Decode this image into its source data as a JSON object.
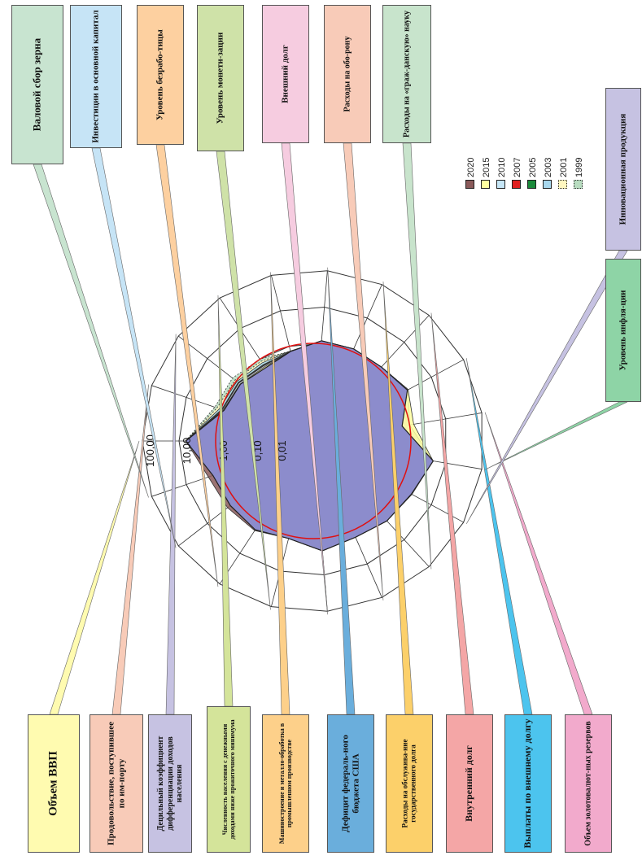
{
  "chart_data": {
    "type": "radar",
    "scale": "log",
    "rings": [
      0.001,
      0.01,
      0.1,
      1,
      10,
      100
    ],
    "ring_labels": [
      "0,01",
      "0,10",
      "1,00",
      "10,00",
      "100,00"
    ],
    "reference_value": 1,
    "legend": [
      "2020",
      "2015",
      "2010",
      "2007",
      "2005",
      "2003",
      "2001",
      "1999"
    ],
    "categories": [
      "Объем ВВП",
      "Продовольствие, поступившее по импорту",
      "Децильный коэффициент дифференциации доходов населения",
      "Численность населения с денежными доходами ниже прожиточного минимума",
      "Машиностроение и металлообработка в промышленном производстве",
      "Дефицит федерального бюджета США",
      "Расходы на обслуживание государственного долга",
      "Внутренний долг",
      "Выплаты по внешнему долгу",
      "Объем золотовалютных резервов",
      "Уровень инфляции",
      "Инновационная продукция",
      "Расходы на «гражданскую» науку",
      "Расходы на оборону",
      "Внешний долг",
      "Уровень монетизации",
      "Уровень безработицы",
      "Инвестиции в основной капитал",
      "Валовой сбор зерна"
    ],
    "series": [
      {
        "name": "1999",
        "color": "#8a5a5a",
        "values": [
          6.5,
          0.8,
          0.7,
          0.5,
          0.7,
          1.2,
          1.2,
          1.2,
          1.8,
          0.6,
          4.5,
          2.5,
          2.0,
          1.6,
          2.2,
          1.2,
          1.8,
          2.0,
          2.3
        ]
      },
      {
        "name": "2001",
        "color": "#ffffa0",
        "values": [
          6.5,
          0.85,
          0.72,
          0.55,
          0.7,
          1.2,
          1.2,
          1.2,
          1.9,
          1.3,
          4.5,
          2.4,
          2.0,
          1.6,
          2.2,
          1.2,
          1.7,
          1.6,
          1.7
        ]
      },
      {
        "name": "2003",
        "color": "#c6e6f6",
        "values": [
          6.5,
          0.9,
          0.8,
          0.6,
          0.7,
          1.2,
          1.2,
          1.2,
          1.9,
          1.0,
          4.5,
          2.4,
          2.0,
          1.6,
          2.2,
          1.2,
          1.7,
          1.6,
          1.7
        ]
      },
      {
        "name": "2005",
        "color": "#e02020",
        "values": [
          6.5,
          0.92,
          0.82,
          0.62,
          0.7,
          1.2,
          1.2,
          1.2,
          1.9,
          0.9,
          4.5,
          2.4,
          2.0,
          1.6,
          2.2,
          1.2,
          1.7,
          1.6,
          1.7
        ]
      },
      {
        "name": "2007",
        "color": "#1a8a3a",
        "values": [
          6.6,
          0.95,
          0.85,
          0.65,
          0.7,
          1.2,
          1.2,
          1.2,
          1.9,
          0.8,
          4.5,
          2.4,
          2.0,
          1.6,
          2.2,
          1.2,
          1.7,
          1.6,
          1.7
        ]
      },
      {
        "name": "2010",
        "color": "#a8d8ee",
        "values": [
          6.6,
          1.1,
          0.95,
          0.75,
          0.72,
          1.2,
          1.2,
          1.2,
          1.9,
          0.75,
          4.5,
          2.4,
          2.0,
          1.6,
          2.2,
          1.2,
          1.7,
          1.6,
          1.7
        ]
      },
      {
        "name": "2015",
        "color": "#fff7c0",
        "values": [
          6.6,
          1.3,
          1.1,
          0.85,
          0.72,
          1.2,
          1.2,
          1.2,
          1.9,
          0.72,
          4.5,
          2.4,
          2.0,
          1.6,
          2.2,
          1.2,
          1.7,
          1.6,
          1.7
        ]
      },
      {
        "name": "2020",
        "color": "#b8dcc0",
        "values": [
          6.6,
          1.5,
          1.35,
          1.0,
          0.72,
          1.2,
          1.2,
          1.2,
          1.9,
          0.7,
          4.5,
          2.4,
          2.0,
          1.6,
          2.2,
          1.2,
          1.7,
          1.6,
          1.7
        ]
      }
    ]
  },
  "callouts": [
    {
      "key": "gdp",
      "label": "Объем ВВП",
      "color": "#fffbb0"
    },
    {
      "key": "food",
      "label": "Продовольствие, поступившее по им-порту",
      "color": "#f8cbb8"
    },
    {
      "key": "decile",
      "label": "Децильный коэффициент дифференциации доходов населения",
      "color": "#c6c2e2"
    },
    {
      "key": "poverty",
      "label": "Численность населения с денежными доходами ниже прожиточного минимума",
      "color": "#d4e49a"
    },
    {
      "key": "machinery",
      "label": "Машиностроение и металло-обработка в промышленном производстве",
      "color": "#fdd08a"
    },
    {
      "key": "deficit",
      "label": "Дефицит федераль-ного бюджета США",
      "color": "#6aaedc"
    },
    {
      "key": "debtservice",
      "label": "Расходы на обслужива-ние государственного долга",
      "color": "#fcd06a"
    },
    {
      "key": "domdebt",
      "label": "Внутренний долг",
      "color": "#f4a6a6"
    },
    {
      "key": "extpay",
      "label": "Выплаты по внешнему долгу",
      "color": "#4cc4ee"
    },
    {
      "key": "reserves",
      "label": "Объем золотовалют-ных резервов",
      "color": "#f2aacc"
    },
    {
      "key": "inflation",
      "label": "Уровень инфля-ции",
      "color": "#8ed4a6"
    },
    {
      "key": "innov",
      "label": "Инновационная продукция",
      "color": "#c6c2e2"
    },
    {
      "key": "science",
      "label": "Расходы на «граж-данскую» науку",
      "color": "#c8e4cc"
    },
    {
      "key": "defense",
      "label": "Расходы на обо-рону",
      "color": "#f8cbb8"
    },
    {
      "key": "extdebt",
      "label": "Внешний долг",
      "color": "#f6cce0"
    },
    {
      "key": "monet",
      "label": "Уровень монети-зации",
      "color": "#cfe2a8"
    },
    {
      "key": "unemp",
      "label": "Уровень безрабо-тицы",
      "color": "#fdd0a0"
    },
    {
      "key": "invest",
      "label": "Инвестиции в основной капитал",
      "color": "#c6e4f6"
    },
    {
      "key": "grain",
      "label": "Валовой сбор зерна",
      "color": "#c8e4d0"
    }
  ]
}
